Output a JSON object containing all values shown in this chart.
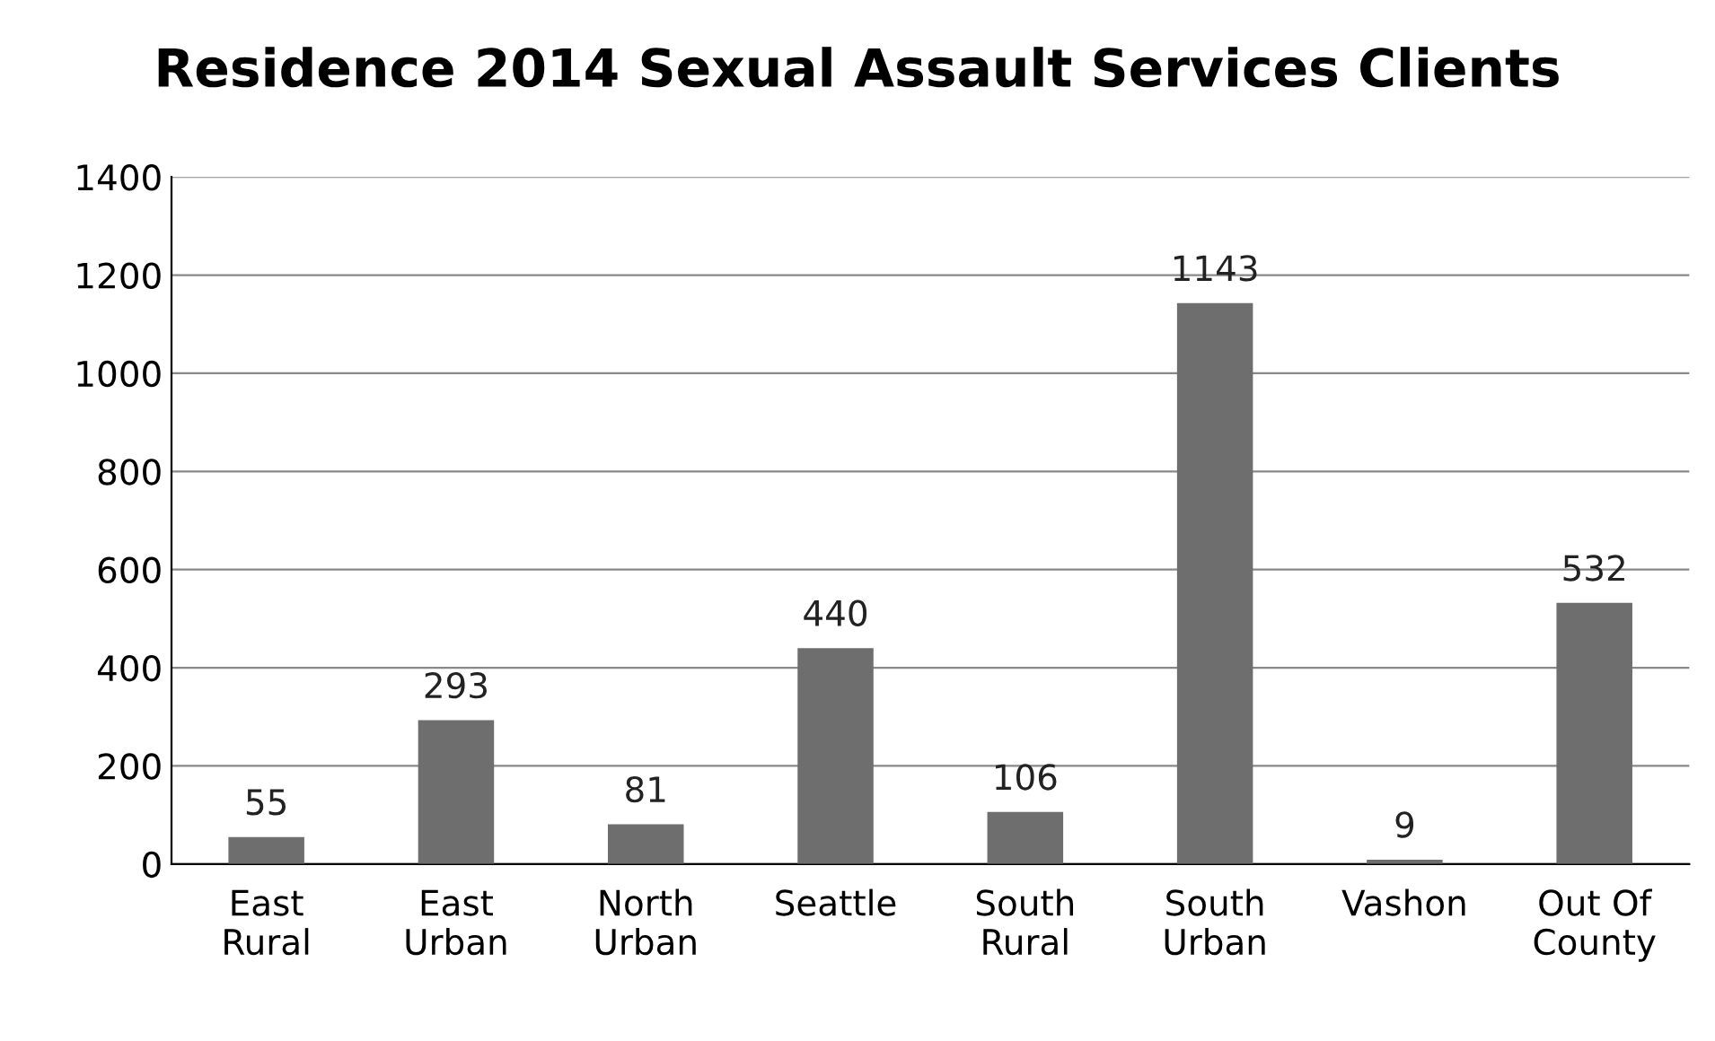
{
  "chart_data": {
    "type": "bar",
    "title": "Residence 2014 Sexual Assault Services Clients",
    "categories": [
      "East\nRural",
      "East\nUrban",
      "North\nUrban",
      "Seattle",
      "South\nRural",
      "South\nUrban",
      "Vashon",
      "Out Of\nCounty"
    ],
    "values": [
      55,
      293,
      81,
      440,
      106,
      1143,
      9,
      532
    ],
    "color": "#6e6e6e",
    "ylim": [
      0,
      1400
    ],
    "yticks": [
      0,
      200,
      400,
      600,
      800,
      1000,
      1200,
      1400
    ],
    "grid": "y",
    "data_labels": true,
    "legend": false
  }
}
